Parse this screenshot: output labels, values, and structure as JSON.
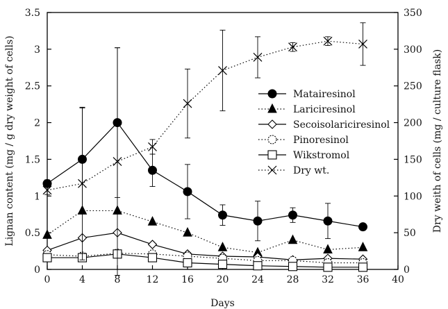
{
  "chart_data": {
    "type": "line",
    "title": "",
    "xlabel": "Days",
    "ylabel": "Lignan content (mg / g dry weight of cells)",
    "y2label": "Dry weith of cells (mg / culture flask)",
    "xlim": [
      0,
      40
    ],
    "ylim": [
      0,
      3.5
    ],
    "y2lim": [
      0,
      350
    ],
    "xticks": [
      0,
      4,
      8,
      12,
      16,
      20,
      24,
      28,
      32,
      36,
      40
    ],
    "yticks": [
      0,
      0.5,
      1,
      1.5,
      2,
      2.5,
      3,
      3.5
    ],
    "y2ticks": [
      0,
      50,
      100,
      150,
      200,
      250,
      300,
      350
    ],
    "grid": false,
    "legend_position": "right-middle",
    "series": [
      {
        "name": "Matairesinol",
        "axis": "left",
        "line": "solid",
        "marker": "filled-circle",
        "color": "#000000",
        "x": [
          0,
          4,
          8,
          12,
          16,
          20,
          24,
          28,
          32,
          36
        ],
        "y": [
          1.17,
          1.5,
          2.0,
          1.35,
          1.06,
          0.74,
          0.66,
          0.74,
          0.66,
          0.58
        ],
        "error": [
          0.05,
          0.7,
          1.02,
          0.22,
          0.37,
          0.14,
          0.27,
          0.1,
          0.24,
          0.0
        ]
      },
      {
        "name": "Lariciresinol",
        "axis": "left",
        "line": "dotted",
        "marker": "filled-triangle",
        "color": "#000000",
        "x": [
          0,
          4,
          8,
          12,
          16,
          20,
          24,
          28,
          32,
          36
        ],
        "y": [
          0.47,
          0.8,
          0.8,
          0.65,
          0.5,
          0.3,
          0.23,
          0.4,
          0.27,
          0.3
        ]
      },
      {
        "name": "Secoisolariciresinol",
        "axis": "left",
        "line": "solid",
        "marker": "open-diamond",
        "color": "#000000",
        "x": [
          0,
          4,
          8,
          12,
          16,
          20,
          24,
          28,
          32,
          36
        ],
        "y": [
          0.26,
          0.43,
          0.5,
          0.34,
          0.21,
          0.18,
          0.17,
          0.13,
          0.15,
          0.14
        ]
      },
      {
        "name": "Pinoresinol",
        "axis": "left",
        "line": "dotted",
        "marker": "open-circle",
        "color": "#000000",
        "x": [
          0,
          4,
          8,
          12,
          16,
          20,
          24,
          28,
          32,
          36
        ],
        "y": [
          0.2,
          0.18,
          0.22,
          0.21,
          0.18,
          0.15,
          0.12,
          0.12,
          0.09,
          0.09
        ]
      },
      {
        "name": "Wikstromol",
        "axis": "left",
        "line": "solid",
        "marker": "open-square",
        "color": "#000000",
        "x": [
          0,
          4,
          8,
          12,
          16,
          20,
          24,
          28,
          32,
          36
        ],
        "y": [
          0.16,
          0.16,
          0.21,
          0.16,
          0.09,
          0.07,
          0.05,
          0.04,
          0.03,
          0.03
        ]
      },
      {
        "name": "Dry wt.",
        "axis": "right",
        "line": "dotted",
        "marker": "x-cross",
        "color": "#000000",
        "x": [
          0,
          4,
          8,
          12,
          16,
          20,
          24,
          28,
          32,
          36
        ],
        "y": [
          108,
          117,
          147,
          167,
          226,
          271,
          289,
          303,
          311,
          307
        ],
        "error": [
          6,
          104,
          155,
          10,
          47,
          55,
          28,
          6,
          6,
          29
        ]
      }
    ]
  }
}
